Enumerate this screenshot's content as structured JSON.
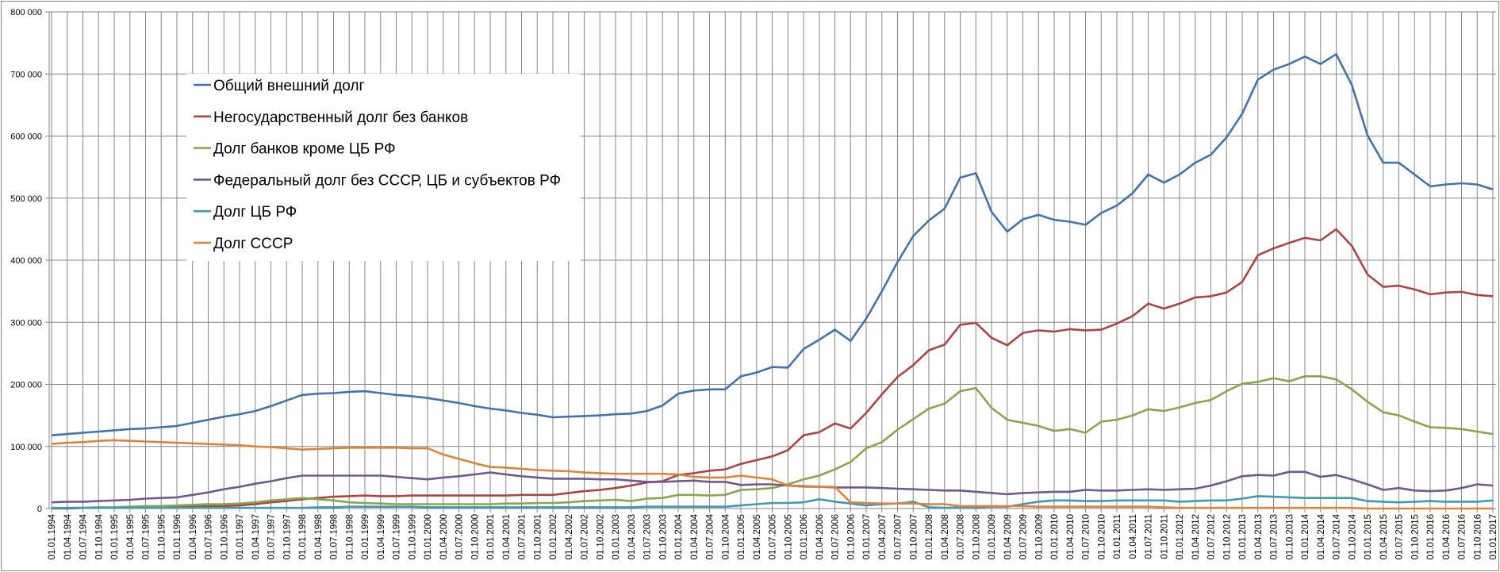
{
  "chart_data": {
    "type": "line",
    "title": "",
    "xlabel": "",
    "ylabel": "",
    "ylim": [
      0,
      800000
    ],
    "yticks": [
      0,
      100000,
      200000,
      300000,
      400000,
      500000,
      600000,
      700000,
      800000
    ],
    "ytick_labels": [
      "0",
      "100 000",
      "200 000",
      "300 000",
      "400 000",
      "500 000",
      "600 000",
      "700 000",
      "800 000"
    ],
    "grid": true,
    "legend_position": "top-left (inside plot)",
    "categories": [
      "01.01.1994",
      "01.04.1994",
      "01.07.1994",
      "01.10.1994",
      "01.01.1995",
      "01.04.1995",
      "01.07.1995",
      "01.10.1995",
      "01.01.1996",
      "01.04.1996",
      "01.07.1996",
      "01.10.1996",
      "01.01.1997",
      "01.04.1997",
      "01.07.1997",
      "01.10.1997",
      "01.01.1998",
      "01.04.1998",
      "01.07.1998",
      "01.10.1998",
      "01.01.1999",
      "01.04.1999",
      "01.07.1999",
      "01.10.1999",
      "01.01.2000",
      "01.04.2000",
      "01.07.2000",
      "01.10.2000",
      "01.01.2001",
      "01.04.2001",
      "01.07.2001",
      "01.10.2001",
      "01.01.2002",
      "01.04.2002",
      "01.07.2002",
      "01.10.2002",
      "01.01.2003",
      "01.04.2003",
      "01.07.2003",
      "01.10.2003",
      "01.01.2004",
      "01.04.2004",
      "01.07.2004",
      "01.10.2004",
      "01.01.2005",
      "01.04.2005",
      "01.07.2005",
      "01.10.2005",
      "01.01.2006",
      "01.04.2006",
      "01.07.2006",
      "01.10.2006",
      "01.01.2007",
      "01.04.2007",
      "01.07.2007",
      "01.10.2007",
      "01.01.2008",
      "01.04.2008",
      "01.07.2008",
      "01.10.2008",
      "01.01.2009",
      "01.04.2009",
      "01.07.2009",
      "01.10.2009",
      "01.01.2010",
      "01.04.2010",
      "01.07.2010",
      "01.10.2010",
      "01.01.2011",
      "01.04.2011",
      "01.07.2011",
      "01.10.2011",
      "01.01.2012",
      "01.04.2012",
      "01.07.2012",
      "01.10.2012",
      "01.01.2013",
      "01.04.2013",
      "01.07.2013",
      "01.10.2013",
      "01.01.2014",
      "01.04.2014",
      "01.07.2014",
      "01.10.2014",
      "01.01.2015",
      "01.04.2015",
      "01.07.2015",
      "01.10.2015",
      "01.01.2016",
      "01.04.2016",
      "01.07.2016",
      "01.10.2016",
      "01.01.2017"
    ],
    "series": [
      {
        "name": "Общий внешний долг",
        "color": "#4572A7",
        "values": [
          118000,
          120000,
          122000,
          124000,
          126000,
          128000,
          129000,
          131000,
          133000,
          138000,
          143000,
          148000,
          152000,
          157000,
          165000,
          174000,
          183000,
          185000,
          186000,
          188000,
          189000,
          186000,
          183000,
          181000,
          178000,
          174000,
          170000,
          165000,
          161000,
          158000,
          154000,
          151000,
          147000,
          148000,
          149000,
          150000,
          152000,
          153000,
          157000,
          166000,
          185000,
          190000,
          192000,
          192000,
          213000,
          219000,
          228000,
          227000,
          257000,
          272000,
          288000,
          270000,
          306000,
          350000,
          397000,
          439000,
          464000,
          483000,
          533000,
          540000,
          478000,
          446000,
          466000,
          473000,
          465000,
          462000,
          457000,
          476000,
          488000,
          508000,
          538000,
          525000,
          538000,
          557000,
          570000,
          598000,
          636000,
          691000,
          707000,
          716000,
          728000,
          716000,
          732000,
          682000,
          601000,
          557000,
          557000,
          538000,
          519000,
          522000,
          524000,
          522000,
          514000
        ]
      },
      {
        "name": "Негосударственный долг без банков",
        "color": "#AA4643",
        "values": [
          0,
          0,
          1000,
          1000,
          1000,
          1000,
          2000,
          2000,
          2000,
          3000,
          4000,
          4000,
          5000,
          7000,
          10000,
          12000,
          15000,
          17000,
          19000,
          20000,
          21000,
          20000,
          20000,
          21000,
          21000,
          21000,
          21000,
          21000,
          21000,
          21000,
          22000,
          22000,
          22000,
          25000,
          28000,
          30000,
          33000,
          37000,
          42000,
          44000,
          54000,
          57000,
          61000,
          63000,
          72000,
          78000,
          84000,
          94000,
          118000,
          123000,
          137000,
          129000,
          154000,
          184000,
          212000,
          231000,
          255000,
          264000,
          296000,
          299000,
          275000,
          263000,
          283000,
          287000,
          285000,
          289000,
          287000,
          288000,
          298000,
          310000,
          330000,
          322000,
          330000,
          340000,
          342000,
          348000,
          365000,
          408000,
          419000,
          428000,
          436000,
          432000,
          450000,
          423000,
          377000,
          357000,
          359000,
          353000,
          345000,
          348000,
          349000,
          344000,
          342000
        ]
      },
      {
        "name": "Долг банков кроме ЦБ РФ",
        "color": "#89A54E",
        "values": [
          0,
          1000,
          1000,
          2000,
          2000,
          3000,
          4000,
          4000,
          5000,
          6000,
          7000,
          7000,
          8000,
          10000,
          13000,
          15000,
          17000,
          15000,
          13000,
          10000,
          9000,
          8000,
          7000,
          7000,
          7000,
          7000,
          7000,
          7000,
          7000,
          8000,
          8000,
          9000,
          9000,
          10000,
          12000,
          13000,
          14000,
          12000,
          16000,
          17000,
          22000,
          22000,
          21000,
          22000,
          30000,
          31000,
          33000,
          39000,
          47000,
          53000,
          63000,
          75000,
          97000,
          107000,
          127000,
          144000,
          161000,
          169000,
          189000,
          194000,
          162000,
          143000,
          138000,
          133000,
          125000,
          128000,
          122000,
          140000,
          143000,
          150000,
          160000,
          157000,
          163000,
          170000,
          175000,
          189000,
          201000,
          204000,
          210000,
          205000,
          213000,
          213000,
          208000,
          192000,
          172000,
          155000,
          150000,
          140000,
          131000,
          130000,
          128000,
          124000,
          120000
        ]
      },
      {
        "name": "Федеральный долг без СССР, ЦБ и субъектов РФ",
        "color": "#71588F",
        "values": [
          10000,
          11000,
          11000,
          12000,
          13000,
          14000,
          16000,
          17000,
          18000,
          22000,
          26000,
          31000,
          35000,
          40000,
          44000,
          49000,
          53000,
          53000,
          53000,
          53000,
          53000,
          53000,
          51000,
          49000,
          47000,
          50000,
          52000,
          55000,
          58000,
          55000,
          52000,
          50000,
          48000,
          48000,
          48000,
          47000,
          47000,
          45000,
          43000,
          43000,
          44000,
          45000,
          43000,
          43000,
          38000,
          39000,
          39000,
          37000,
          36000,
          35000,
          34000,
          34000,
          34000,
          33000,
          32000,
          31000,
          30000,
          29000,
          29000,
          27000,
          25000,
          23000,
          25000,
          26000,
          27000,
          27000,
          30000,
          29000,
          29000,
          30000,
          31000,
          30000,
          31000,
          32000,
          37000,
          44000,
          52000,
          54000,
          53000,
          59000,
          59000,
          51000,
          54000,
          47000,
          39000,
          30000,
          33000,
          29000,
          28000,
          29000,
          33000,
          39000,
          37000
        ]
      },
      {
        "name": "Долг ЦБ РФ",
        "color": "#4198AF",
        "values": [
          1000,
          1000,
          1000,
          1000,
          1000,
          1000,
          1000,
          1000,
          1000,
          1000,
          1000,
          1000,
          1000,
          1000,
          1000,
          1000,
          1000,
          2000,
          2000,
          3000,
          3000,
          3000,
          3000,
          3000,
          2000,
          2000,
          2000,
          2000,
          2000,
          2000,
          2000,
          2000,
          2000,
          2000,
          2000,
          2000,
          2000,
          2000,
          3000,
          3000,
          3000,
          3000,
          3000,
          3000,
          5000,
          7000,
          9000,
          9000,
          10000,
          15000,
          11000,
          8000,
          5000,
          7000,
          8000,
          11000,
          2000,
          1000,
          2000,
          2000,
          3000,
          3000,
          7000,
          11000,
          13000,
          13000,
          12000,
          12000,
          13000,
          13000,
          13000,
          13000,
          11000,
          12000,
          13000,
          13000,
          16000,
          20000,
          19000,
          18000,
          17000,
          17000,
          17000,
          17000,
          12000,
          11000,
          10000,
          11000,
          12000,
          11000,
          11000,
          11000,
          13000
        ]
      },
      {
        "name": "Долг СССР",
        "color": "#DB843D",
        "values": [
          104000,
          106000,
          107000,
          109000,
          110000,
          109000,
          108000,
          107000,
          106000,
          105000,
          104000,
          103000,
          102000,
          100000,
          99000,
          97000,
          95000,
          96000,
          97000,
          98000,
          98000,
          98000,
          98000,
          97000,
          97000,
          87000,
          80000,
          73000,
          67000,
          66000,
          64000,
          62000,
          61000,
          60000,
          58000,
          57000,
          56000,
          56000,
          56000,
          56000,
          55000,
          51000,
          50000,
          50000,
          53000,
          50000,
          47000,
          37000,
          35000,
          35000,
          35000,
          10000,
          9000,
          8000,
          8000,
          8000,
          7000,
          7000,
          4000,
          4000,
          4000,
          4000,
          4000,
          3000,
          3000,
          3000,
          3000,
          3000,
          3000,
          3000,
          3000,
          2000,
          1000,
          1000,
          1000,
          1000,
          1000,
          1000,
          1000,
          1000,
          1000,
          1000,
          1000,
          1000,
          0,
          0,
          0,
          0,
          0,
          0,
          0,
          0,
          0
        ]
      }
    ]
  },
  "colors": {
    "gridline": "#868686",
    "legend_background": "#FFFFFF"
  }
}
